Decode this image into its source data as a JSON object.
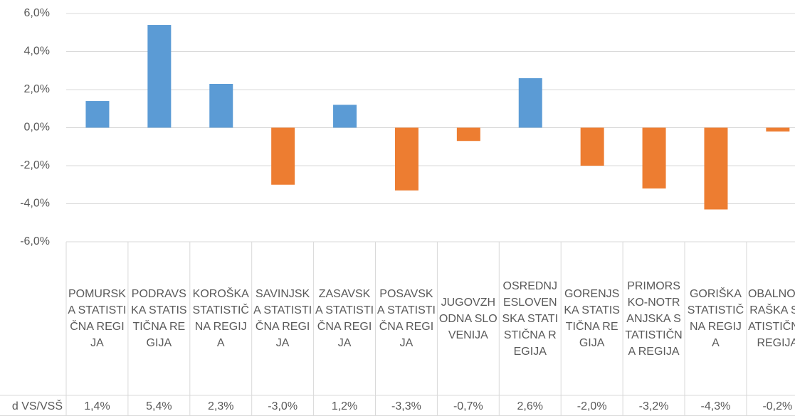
{
  "chart_data": {
    "type": "bar",
    "row_label": "d VS/VSŠ",
    "categories": [
      "POMURSKA STATISTIČNA REGIJA",
      "PODRAVSKA STATISTIČNA REGIJA",
      "KOROŠKA STATISTIČNA REGIJA",
      "SAVINJSKA STATISTIČNA REGIJA",
      "ZASAVSKA STATISTIČNA REGIJA",
      "POSAVSKA STATISTIČNA REGIJA",
      "JUGOVZHODNA SLOVENIJA",
      "OSREDNJESLOVENSKA STATISTIČNA REGIJA",
      "GORENJSKA STATISTIČNA REGIJA",
      "PRIMORSKO-NOTRANJSKA STATISTIČNA REGIJA",
      "GORIŠKA STATISTIČNA REGIJA",
      "OBALNO-KRAŠKA STATISTIČNA REGIJA"
    ],
    "values": [
      1.4,
      5.4,
      2.3,
      -3.0,
      1.2,
      -3.3,
      -0.7,
      2.6,
      -2.0,
      -3.2,
      -4.3,
      -0.2
    ],
    "value_labels": [
      "1,4%",
      "5,4%",
      "2,3%",
      "-3,0%",
      "1,2%",
      "-3,3%",
      "-0,7%",
      "2,6%",
      "-2,0%",
      "-3,2%",
      "-4,3%",
      "-0,2%"
    ],
    "color": "#5b9bd5",
    "negative_color": "#ed7d31",
    "ylim": [
      -6,
      6
    ],
    "yticks": [
      {
        "value": -6,
        "label": "-6,0%"
      },
      {
        "value": -4,
        "label": "-4,0%"
      },
      {
        "value": -2,
        "label": "-2,0%"
      },
      {
        "value": 0,
        "label": "0,0%"
      },
      {
        "value": 2,
        "label": "2,0%"
      },
      {
        "value": 4,
        "label": "4,0%"
      },
      {
        "value": 6,
        "label": "6,0%"
      }
    ],
    "grid": true
  }
}
